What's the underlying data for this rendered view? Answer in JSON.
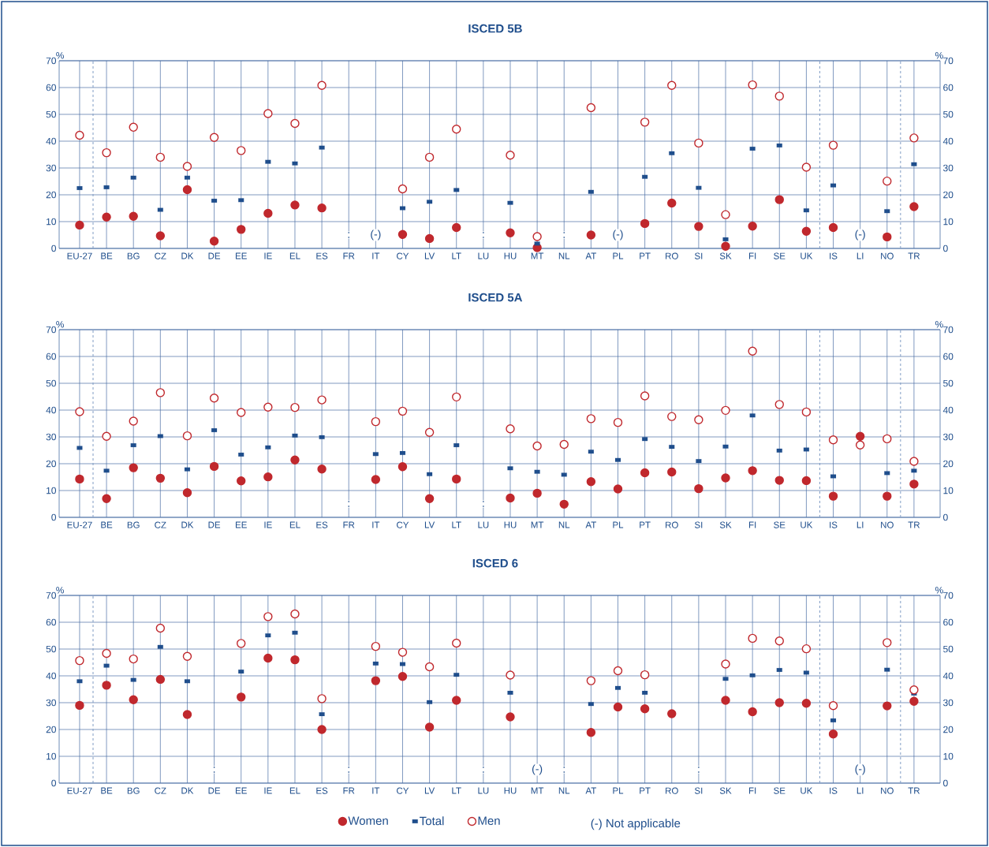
{
  "chart_data": [
    {
      "type": "scatter",
      "title": "ISCED 5B",
      "ylabel": "%",
      "y2label": "%",
      "categories": [
        "EU-27",
        "BE",
        "BG",
        "CZ",
        "DK",
        "DE",
        "EE",
        "IE",
        "EL",
        "ES",
        "FR",
        "IT",
        "CY",
        "LV",
        "LT",
        "LU",
        "HU",
        "MT",
        "NL",
        "AT",
        "PL",
        "PT",
        "RO",
        "SI",
        "SK",
        "FI",
        "SE",
        "UK",
        "IS",
        "LI",
        "NO",
        "TR"
      ],
      "series": [
        {
          "color": "#c0282d",
          "marker": "circle",
          "values": [
            8.7,
            11.7,
            12.0,
            4.7,
            21.9,
            2.7,
            7.1,
            13.1,
            16.2,
            15.1,
            null,
            null,
            5.2,
            3.7,
            7.8,
            null,
            5.8,
            0.3,
            null,
            5.0,
            null,
            9.3,
            16.9,
            8.2,
            0.8,
            8.3,
            18.2,
            6.4,
            7.8,
            null,
            4.3,
            15.6
          ]
        },
        {
          "color": "#1f4e8c",
          "marker": "square",
          "values": [
            22.5,
            22.8,
            26.4,
            14.4,
            26.4,
            17.8,
            18.0,
            32.3,
            31.7,
            37.6,
            null,
            null,
            15.0,
            17.4,
            21.8,
            null,
            17.0,
            1.8,
            null,
            21.1,
            null,
            26.7,
            35.5,
            22.6,
            3.4,
            37.2,
            38.4,
            14.2,
            23.5,
            null,
            13.9,
            31.4
          ]
        },
        {
          "color": "#c0282d",
          "marker": "circle",
          "values": [
            42.2,
            35.7,
            45.2,
            34.0,
            30.6,
            41.4,
            36.5,
            50.3,
            46.6,
            60.8,
            null,
            null,
            22.2,
            34.0,
            44.5,
            null,
            34.8,
            4.4,
            null,
            52.5,
            null,
            47.1,
            60.8,
            39.3,
            12.6,
            61.0,
            56.8,
            30.3,
            38.5,
            null,
            25.1,
            41.2
          ]
        }
      ],
      "ylim": [
        0,
        70
      ],
      "yticks": [
        0,
        10,
        20,
        30,
        40,
        50,
        60,
        70
      ],
      "y2lim": [
        0,
        70
      ],
      "y2ticks": [
        0,
        10,
        20,
        30,
        40,
        50,
        60,
        70
      ],
      "grid": true,
      "annotations": [
        {
          "text": ":",
          "x": "FR",
          "y": 5
        },
        {
          "text": "(-)",
          "x": "IT",
          "y": 5
        },
        {
          "text": ":",
          "x": "LU",
          "y": 5
        },
        {
          "text": ":",
          "x": "NL",
          "y": 5
        },
        {
          "text": "(-)",
          "x": "PL",
          "y": 5
        },
        {
          "text": "(-)",
          "x": "LI",
          "y": 5
        }
      ]
    },
    {
      "type": "scatter",
      "title": "ISCED 5A",
      "ylabel": "%",
      "y2label": "%",
      "categories": [
        "EU-27",
        "BE",
        "BG",
        "CZ",
        "DK",
        "DE",
        "EE",
        "IE",
        "EL",
        "ES",
        "FR",
        "IT",
        "CY",
        "LV",
        "LT",
        "LU",
        "HU",
        "MT",
        "NL",
        "AT",
        "PL",
        "PT",
        "RO",
        "SI",
        "SK",
        "FI",
        "SE",
        "UK",
        "IS",
        "LI",
        "NO",
        "TR"
      ],
      "series": [
        {
          "color": "#c0282d",
          "marker": "circle",
          "values": [
            14.3,
            7.0,
            18.5,
            14.6,
            9.2,
            19.0,
            13.6,
            15.1,
            21.4,
            18.0,
            null,
            14.1,
            18.9,
            7.0,
            14.3,
            null,
            7.2,
            9.0,
            4.9,
            13.3,
            10.6,
            16.6,
            16.9,
            10.7,
            14.7,
            17.4,
            13.8,
            13.7,
            7.9,
            30.2,
            7.9,
            12.4
          ]
        },
        {
          "color": "#1f4e8c",
          "marker": "square",
          "values": [
            25.9,
            17.4,
            26.9,
            30.3,
            17.9,
            32.5,
            23.4,
            26.1,
            30.5,
            29.9,
            null,
            23.6,
            24.0,
            16.1,
            26.9,
            null,
            18.3,
            17.0,
            15.9,
            24.5,
            21.4,
            29.2,
            26.3,
            21.0,
            26.4,
            38.0,
            24.9,
            25.3,
            15.3,
            null,
            16.5,
            17.4
          ]
        },
        {
          "color": "#c0282d",
          "marker": "circle",
          "values": [
            39.4,
            30.2,
            35.9,
            46.5,
            30.4,
            44.5,
            39.1,
            41.1,
            41.0,
            43.8,
            null,
            35.7,
            39.6,
            31.7,
            44.9,
            null,
            33.0,
            26.6,
            27.2,
            36.8,
            35.4,
            45.3,
            37.6,
            36.4,
            39.9,
            62.0,
            42.1,
            39.3,
            28.9,
            27.0,
            29.3,
            20.9
          ]
        }
      ],
      "ylim": [
        0,
        70
      ],
      "yticks": [
        0,
        10,
        20,
        30,
        40,
        50,
        60,
        70
      ],
      "y2lim": [
        0,
        70
      ],
      "y2ticks": [
        0,
        10,
        20,
        30,
        40,
        50,
        60,
        70
      ],
      "grid": true,
      "annotations": [
        {
          "text": ":",
          "x": "FR",
          "y": 5
        },
        {
          "text": ":",
          "x": "LU",
          "y": 5
        }
      ]
    },
    {
      "type": "scatter",
      "title": "ISCED 6",
      "ylabel": "%",
      "y2label": "%",
      "categories": [
        "EU-27",
        "BE",
        "BG",
        "CZ",
        "DK",
        "DE",
        "EE",
        "IE",
        "EL",
        "ES",
        "FR",
        "IT",
        "CY",
        "LV",
        "LT",
        "LU",
        "HU",
        "MT",
        "NL",
        "AT",
        "PL",
        "PT",
        "RO",
        "SI",
        "SK",
        "FI",
        "SE",
        "UK",
        "IS",
        "LI",
        "NO",
        "TR"
      ],
      "series": [
        {
          "name": "Women",
          "color": "#c0282d",
          "marker": "circle",
          "values": [
            29.0,
            36.5,
            31.1,
            38.7,
            25.6,
            null,
            32.1,
            46.6,
            46.0,
            20.0,
            null,
            38.2,
            39.8,
            20.9,
            30.9,
            null,
            24.7,
            null,
            null,
            18.9,
            28.4,
            27.7,
            25.9,
            null,
            30.9,
            26.6,
            30.0,
            29.8,
            18.3,
            null,
            28.8,
            30.5
          ]
        },
        {
          "name": "Total",
          "color": "#1f4e8c",
          "marker": "square",
          "values": [
            38.0,
            43.8,
            38.5,
            50.8,
            38.0,
            null,
            41.6,
            55.1,
            56.1,
            25.7,
            null,
            44.6,
            44.4,
            30.2,
            40.4,
            null,
            33.7,
            null,
            null,
            29.5,
            35.5,
            33.7,
            null,
            null,
            38.9,
            40.2,
            42.2,
            41.2,
            23.4,
            null,
            42.3,
            33.4
          ]
        },
        {
          "name": "Men",
          "color": "#c0282d",
          "marker": "circle",
          "values": [
            45.7,
            48.4,
            46.3,
            57.8,
            47.3,
            null,
            52.1,
            62.1,
            63.1,
            31.5,
            null,
            51.0,
            48.8,
            43.4,
            52.2,
            null,
            40.3,
            null,
            null,
            38.2,
            41.9,
            40.4,
            null,
            null,
            44.4,
            54.0,
            53.0,
            50.1,
            28.9,
            null,
            52.4,
            34.8
          ]
        }
      ],
      "ylim": [
        0,
        70
      ],
      "yticks": [
        0,
        10,
        20,
        30,
        40,
        50,
        60,
        70
      ],
      "y2lim": [
        0,
        70
      ],
      "y2ticks": [
        0,
        10,
        20,
        30,
        40,
        50,
        60,
        70
      ],
      "grid": true,
      "legend": "bottom",
      "annotations": [
        {
          "text": ":",
          "x": "DE",
          "y": 5
        },
        {
          "text": ":",
          "x": "FR",
          "y": 5
        },
        {
          "text": ":",
          "x": "LU",
          "y": 5
        },
        {
          "text": "(-)",
          "x": "MT",
          "y": 5
        },
        {
          "text": ":",
          "x": "NL",
          "y": 5
        },
        {
          "text": ":",
          "x": "SI",
          "y": 5
        },
        {
          "text": "(-)",
          "x": "LI",
          "y": 5
        },
        "(-)   Not applicable"
      ]
    }
  ]
}
